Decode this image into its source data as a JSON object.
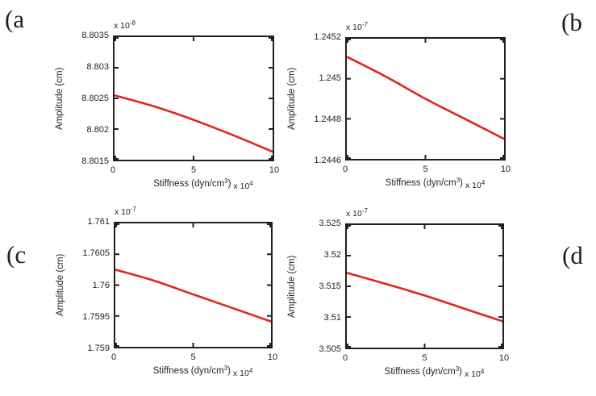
{
  "figure": {
    "background": "#ffffff",
    "axis_color": "#231f1f",
    "text_color": "#231f1f",
    "curve_color": "#e2261e"
  },
  "chart_data": [
    {
      "panel": "a",
      "panel_label": "(a",
      "type": "line",
      "title": "",
      "ylabel": "Amplitude (cm)",
      "xlabel_main": "Stiffness (dyn/cm",
      "xlabel_sup": "3",
      "xlabel_close": ")",
      "x_multiplier_base": "x 10",
      "x_multiplier_exp": "4",
      "y_exponent_base": "x 10",
      "y_exponent_exp": "-8",
      "y_scale": "1e-8",
      "xlim": [
        0,
        10
      ],
      "ylim": [
        8.8015,
        8.8035
      ],
      "xticks": [
        "0",
        "5",
        "10"
      ],
      "yticks": [
        "8.8015",
        "8.802",
        "8.8025",
        "8.803",
        "8.8035"
      ],
      "x": [
        0,
        2.5,
        5,
        7.5,
        10
      ],
      "y": [
        8.80255,
        8.80237,
        8.80215,
        8.8019,
        8.80163
      ],
      "grid": false,
      "legend": null
    },
    {
      "panel": "b",
      "panel_label": "(b",
      "type": "line",
      "title": "",
      "ylabel": "Amplitude (cm)",
      "xlabel_main": "Stiffness (dyn/cm",
      "xlabel_sup": "3",
      "xlabel_close": ")",
      "x_multiplier_base": "x 10",
      "x_multiplier_exp": "4",
      "y_exponent_base": "x 10",
      "y_exponent_exp": "-7",
      "y_scale": "1e-7",
      "xlim": [
        0,
        10
      ],
      "ylim": [
        1.2446,
        1.2452
      ],
      "xticks": [
        "0",
        "5",
        "10"
      ],
      "yticks": [
        "1.2446",
        "1.2448",
        "1.245",
        "1.2452"
      ],
      "x": [
        0,
        2.5,
        5,
        7.5,
        10
      ],
      "y": [
        1.24511,
        1.24501,
        1.2449,
        1.2448,
        1.2447
      ],
      "grid": false,
      "legend": null
    },
    {
      "panel": "c",
      "panel_label": "(c",
      "type": "line",
      "title": "",
      "ylabel": "Amplitude (cm)",
      "xlabel_main": "Stiffness (dyn/cm",
      "xlabel_sup": "3",
      "xlabel_close": ")",
      "x_multiplier_base": "x 10",
      "x_multiplier_exp": "4",
      "y_exponent_base": "x 10",
      "y_exponent_exp": "-7",
      "y_scale": "1e-7",
      "xlim": [
        0,
        10
      ],
      "ylim": [
        1.759,
        1.761
      ],
      "xticks": [
        "0",
        "5",
        "10"
      ],
      "yticks": [
        "1.759",
        "1.7595",
        "1.76",
        "1.7605",
        "1.761"
      ],
      "x": [
        0,
        2.5,
        5,
        7.5,
        10
      ],
      "y": [
        1.76025,
        1.76007,
        1.75985,
        1.75963,
        1.75941
      ],
      "grid": false,
      "legend": null
    },
    {
      "panel": "d",
      "panel_label": "(d",
      "type": "line",
      "title": "",
      "ylabel": "Amplitude (cm)",
      "xlabel_main": "Stiffness (dyn/cm",
      "xlabel_sup": "3",
      "xlabel_close": ")",
      "x_multiplier_base": "x 10",
      "x_multiplier_exp": "4",
      "y_exponent_base": "x 10",
      "y_exponent_exp": "-7",
      "y_scale": "1e-7",
      "xlim": [
        0,
        10
      ],
      "ylim": [
        3.505,
        3.525
      ],
      "xticks": [
        "0",
        "5",
        "10"
      ],
      "yticks": [
        "3.505",
        "3.51",
        "3.515",
        "3.52",
        "3.525"
      ],
      "x": [
        0,
        2.5,
        5,
        7.5,
        10
      ],
      "y": [
        3.5172,
        3.5154,
        3.5135,
        3.5114,
        3.5093
      ],
      "grid": false,
      "legend": null
    }
  ]
}
